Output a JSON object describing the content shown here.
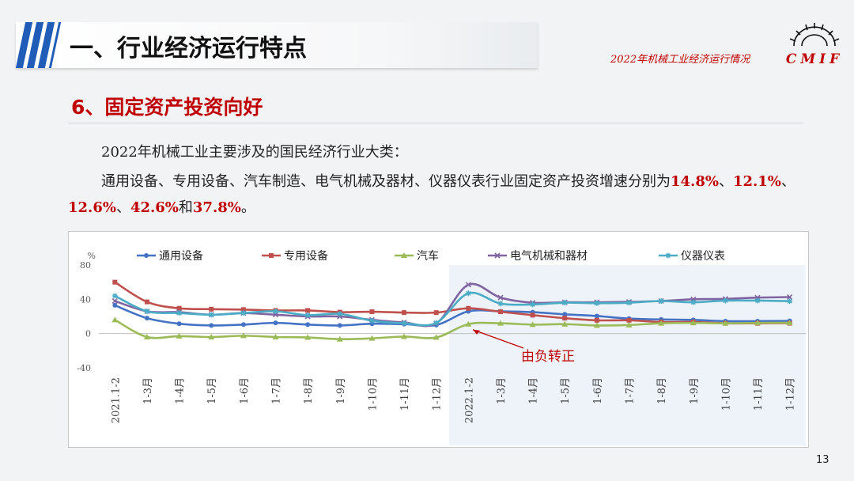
{
  "header": {
    "title": "一、行业经济运行特点",
    "report_name": "2022年机械工业经济运行情况",
    "logo_text": "CMIF",
    "accent_color": "#1f5db8",
    "red_color": "#c00000"
  },
  "section": {
    "subtitle": "6、固定资产投资向好"
  },
  "body_text": {
    "line1": "2022年机械工业主要涉及的国民经济行业大类：",
    "line2_prefix": "通用设备、专用设备、汽车制造、电气机械及器材、仪器仪表行业固定资产投资增速分别为",
    "values": [
      "14.8%",
      "12.1%",
      "12.6%",
      "42.6%",
      "37.8%"
    ],
    "sep": "、",
    "and_word": "和",
    "end": "。"
  },
  "page_number": "13",
  "chart_data": {
    "type": "line",
    "ylabel": "%",
    "ylim": [
      -40,
      80
    ],
    "yticks": [
      80,
      40,
      0,
      -40
    ],
    "categories": [
      "2021.1-2",
      "1-3月",
      "1-4月",
      "1-5月",
      "1-6月",
      "1-7月",
      "1-8月",
      "1-9月",
      "1-10月",
      "1-11月",
      "1-12月",
      "2022.1-2",
      "1-3月",
      "1-4月",
      "1-5月",
      "1-6月",
      "1-7月",
      "1-8月",
      "1-9月",
      "1-10月",
      "1-11月",
      "1-12月"
    ],
    "legend_position": "top",
    "highlight_from_index": 11,
    "annotation": "由负转正",
    "series": [
      {
        "name": "通用设备",
        "color": "#4472c4",
        "marker": "circle",
        "values": [
          33.0,
          18.0,
          11.5,
          9.5,
          10.5,
          12.5,
          10.5,
          9.5,
          11.5,
          11.0,
          10.0,
          26.0,
          26.0,
          25.0,
          22.5,
          20.5,
          17.5,
          16.5,
          16.0,
          14.5,
          14.5,
          14.8
        ]
      },
      {
        "name": "专用设备",
        "color": "#c0504d",
        "marker": "square",
        "values": [
          60.0,
          37.0,
          29.5,
          28.5,
          28.0,
          27.0,
          27.0,
          25.0,
          25.5,
          24.5,
          24.5,
          29.5,
          25.5,
          21.5,
          18.0,
          15.5,
          15.5,
          13.5,
          13.5,
          12.0,
          12.0,
          12.1
        ]
      },
      {
        "name": "汽车",
        "color": "#9bbb59",
        "marker": "triangle",
        "values": [
          16.0,
          -4.0,
          -3.0,
          -4.0,
          -2.5,
          -4.0,
          -4.5,
          -6.5,
          -5.5,
          -3.5,
          -4.5,
          11.0,
          12.0,
          10.5,
          11.0,
          9.5,
          10.0,
          12.0,
          12.5,
          12.0,
          12.5,
          12.6
        ]
      },
      {
        "name": "电气机械和器材",
        "color": "#8064a2",
        "marker": "x",
        "values": [
          38.0,
          26.0,
          25.0,
          22.0,
          24.0,
          22.0,
          20.0,
          20.0,
          16.0,
          13.0,
          12.0,
          57.0,
          42.0,
          36.0,
          36.5,
          36.5,
          37.0,
          38.0,
          40.0,
          40.5,
          42.0,
          42.6
        ]
      },
      {
        "name": "仪器仪表",
        "color": "#4bacc6",
        "marker": "star",
        "values": [
          44.0,
          26.0,
          24.0,
          22.0,
          24.0,
          26.0,
          21.5,
          23.0,
          15.0,
          12.0,
          12.5,
          47.0,
          35.0,
          34.0,
          36.0,
          35.5,
          36.0,
          38.0,
          36.5,
          38.5,
          38.5,
          37.8
        ]
      }
    ]
  }
}
